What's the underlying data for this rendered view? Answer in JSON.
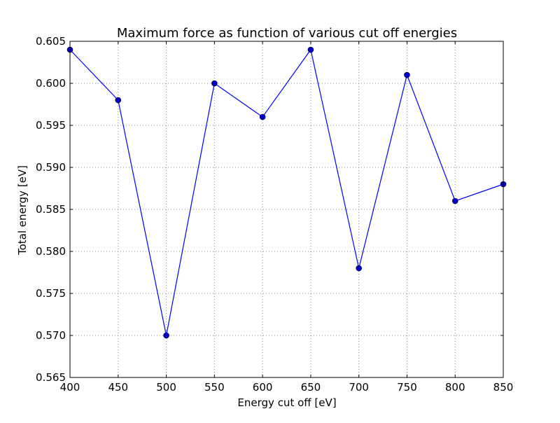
{
  "chart_data": {
    "type": "line",
    "title": "Maximum force as function of various cut off energies",
    "xlabel": "Energy cut off [eV]",
    "ylabel": "Total energy [eV]",
    "xlim": [
      400,
      850
    ],
    "ylim": [
      0.565,
      0.605
    ],
    "xticks": [
      "400",
      "450",
      "500",
      "550",
      "600",
      "650",
      "700",
      "750",
      "800",
      "850"
    ],
    "yticks": [
      "0.565",
      "0.570",
      "0.575",
      "0.580",
      "0.585",
      "0.590",
      "0.595",
      "0.600",
      "0.605"
    ],
    "grid": true,
    "legend": "none",
    "colors": {
      "series": "#0000ff",
      "marker_fill": "#0000cc",
      "grid": "#888888",
      "axes": "#000000"
    },
    "series": [
      {
        "x": [
          400,
          450,
          500,
          550,
          600,
          650,
          700,
          750,
          800,
          850
        ],
        "y": [
          0.604,
          0.598,
          0.57,
          0.6,
          0.596,
          0.604,
          0.578,
          0.601,
          0.586,
          0.588
        ]
      }
    ]
  }
}
